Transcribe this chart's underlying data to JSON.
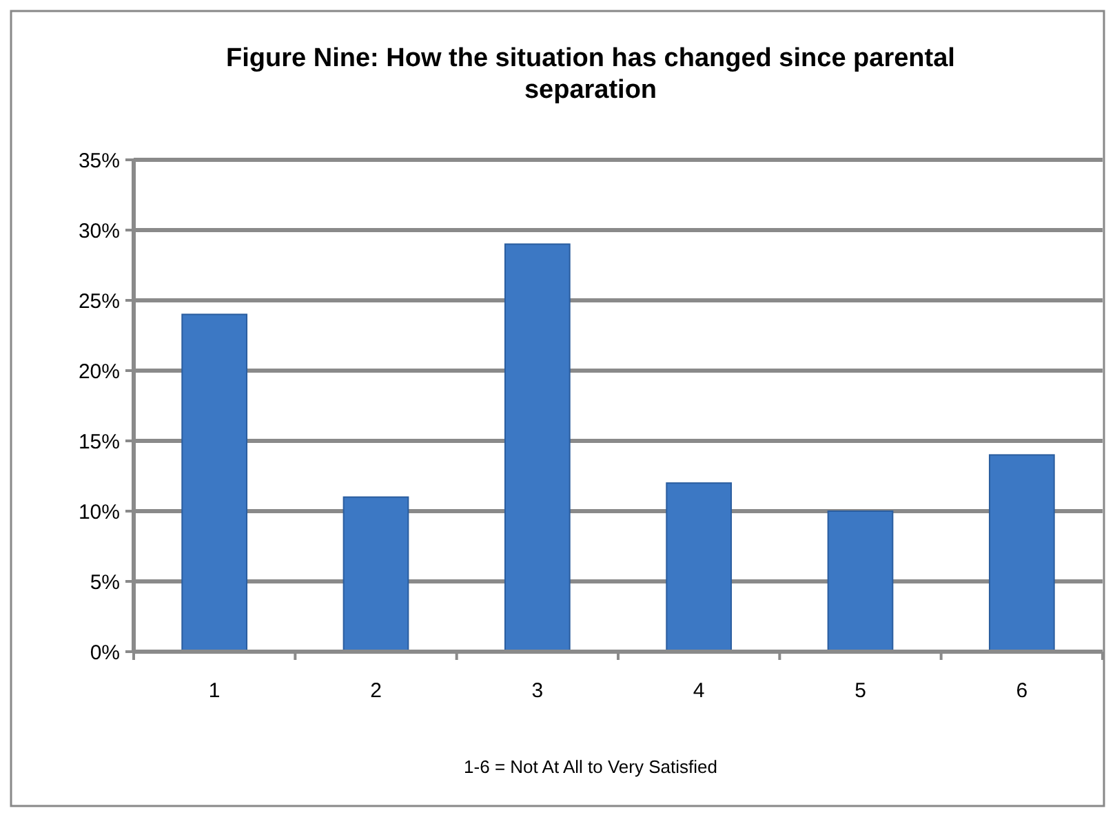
{
  "chart_data": {
    "type": "bar",
    "title": "Figure  Nine: How the situation has changed since parental separation",
    "categories": [
      "1",
      "2",
      "3",
      "4",
      "5",
      "6"
    ],
    "values": [
      24,
      11,
      29,
      12,
      10,
      14
    ],
    "color": "#3c78c4",
    "xlabel": "1-6 = Not At All to Very Satisfied",
    "ylim": [
      0,
      35
    ],
    "yticks": [
      {
        "value": 0,
        "label": "0%"
      },
      {
        "value": 5,
        "label": "5%"
      },
      {
        "value": 10,
        "label": "10%"
      },
      {
        "value": 15,
        "label": "15%"
      },
      {
        "value": 20,
        "label": "20%"
      },
      {
        "value": 25,
        "label": "25%"
      },
      {
        "value": 30,
        "label": "30%"
      },
      {
        "value": 35,
        "label": "35%"
      }
    ],
    "grid": "y"
  }
}
